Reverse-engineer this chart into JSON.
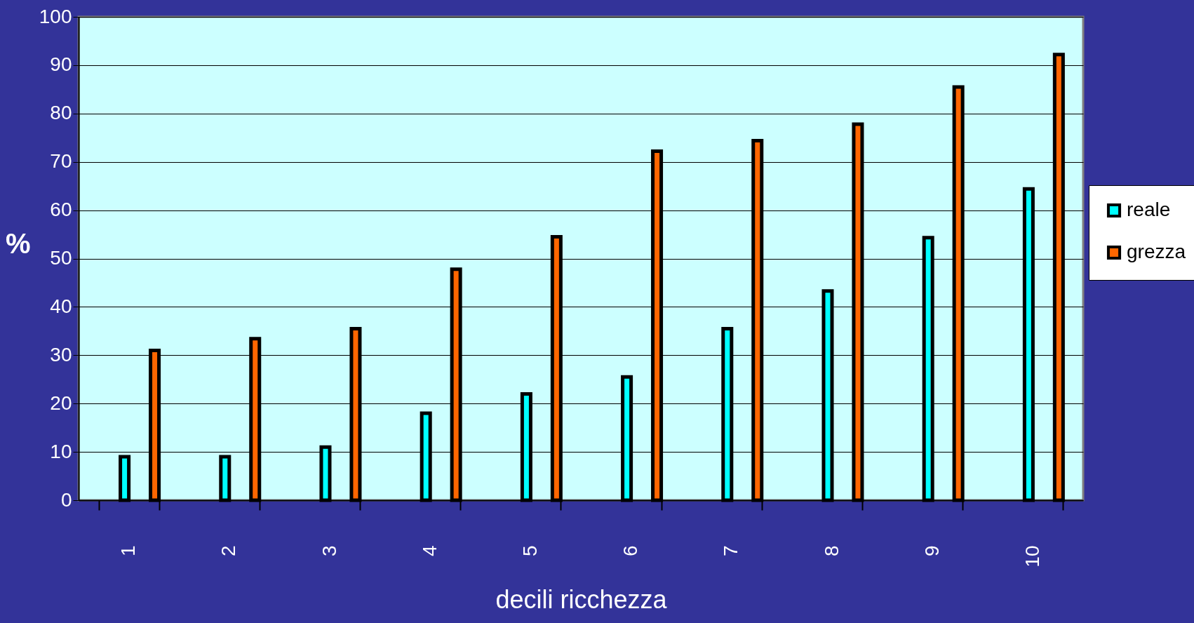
{
  "chart_data": {
    "type": "bar",
    "xlabel": "decili ricchezza",
    "ylabel": "%",
    "categories": [
      "1",
      "2",
      "3",
      "4",
      "5",
      "6",
      "7",
      "8",
      "9",
      "10"
    ],
    "series": [
      {
        "name": "reale",
        "color": "#00ffff",
        "values": [
          9,
          9,
          11,
          18,
          22,
          25.5,
          35.5,
          43.3,
          54.3,
          64.4
        ]
      },
      {
        "name": "grezza",
        "color": "#ff6600",
        "values": [
          31,
          33.4,
          35.5,
          47.8,
          54.5,
          72.2,
          74.4,
          77.8,
          85.5,
          92.2
        ]
      }
    ],
    "ylim": [
      0,
      100
    ],
    "yticks": [
      0,
      10,
      20,
      30,
      40,
      50,
      60,
      70,
      80,
      90,
      100
    ],
    "grid": "y",
    "legend": "right"
  }
}
